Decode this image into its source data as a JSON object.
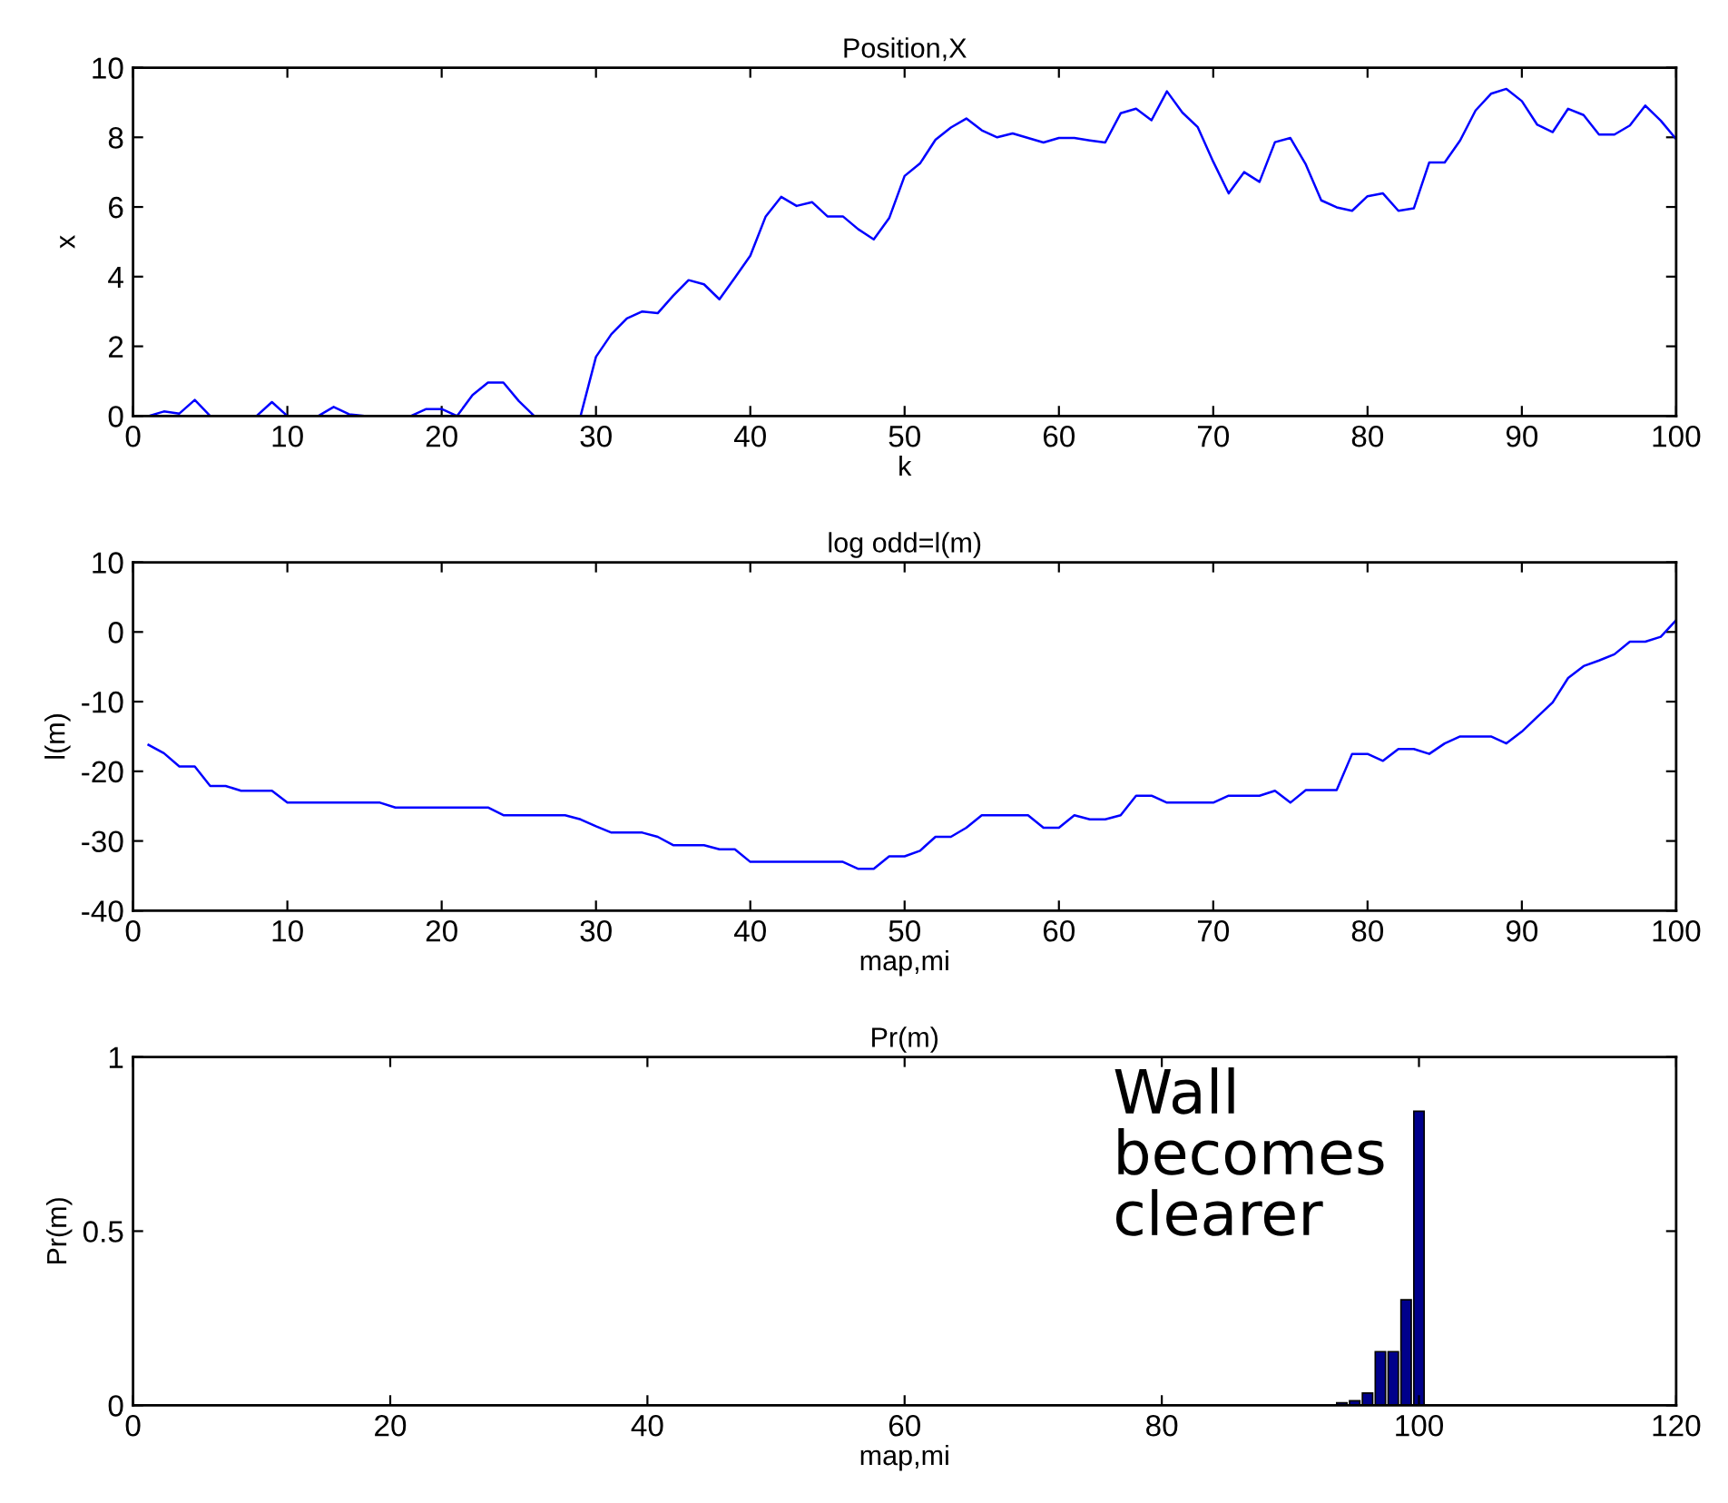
{
  "chart_data": [
    {
      "type": "line",
      "title": "Position,X",
      "xlabel": "k",
      "ylabel": "x",
      "xlim": [
        0,
        100
      ],
      "xticks": [
        0,
        10,
        20,
        30,
        40,
        50,
        60,
        70,
        80,
        90,
        100
      ],
      "ylim": [
        0,
        10
      ],
      "yticks": [
        0,
        2,
        4,
        6,
        8,
        10
      ],
      "grid": false,
      "legend": false,
      "x": [
        1,
        2,
        3,
        4,
        5,
        6,
        7,
        8,
        9,
        10,
        11,
        12,
        13,
        14,
        15,
        16,
        17,
        18,
        19,
        20,
        21,
        22,
        23,
        24,
        25,
        26,
        27,
        28,
        29,
        30,
        31,
        32,
        33,
        34,
        35,
        36,
        37,
        38,
        39,
        40,
        41,
        42,
        43,
        44,
        45,
        46,
        47,
        48,
        49,
        50,
        51,
        52,
        53,
        54,
        55,
        56,
        57,
        58,
        59,
        60,
        61,
        62,
        63,
        64,
        65,
        66,
        67,
        68,
        69,
        70,
        71,
        72,
        73,
        74,
        75,
        76,
        77,
        78,
        79,
        80,
        81,
        82,
        83,
        84,
        85,
        86,
        87,
        88,
        89,
        90,
        91,
        92,
        93,
        94,
        95,
        96,
        97,
        98,
        99,
        100
      ],
      "series": [
        {
          "color": "#0000ff",
          "values": [
            0,
            0.13,
            0.07,
            0.46,
            0,
            0,
            0,
            0,
            0.4,
            0,
            0,
            0,
            0.26,
            0.05,
            0,
            0,
            0,
            0,
            0.2,
            0.2,
            0,
            0.6,
            0.96,
            0.96,
            0.43,
            0,
            0,
            0,
            0,
            1.7,
            2.35,
            2.8,
            3.0,
            2.95,
            3.45,
            3.9,
            3.78,
            3.35,
            3.97,
            4.6,
            5.73,
            6.29,
            6.03,
            6.14,
            5.73,
            5.73,
            5.36,
            5.07,
            5.68,
            6.89,
            7.25,
            7.93,
            8.28,
            8.54,
            8.2,
            8.0,
            8.11,
            7.98,
            7.85,
            7.98,
            7.98,
            7.91,
            7.85,
            8.69,
            8.82,
            8.49,
            9.32,
            8.71,
            8.29,
            7.3,
            6.39,
            7.0,
            6.72,
            7.86,
            7.98,
            7.22,
            6.19,
            5.99,
            5.89,
            6.31,
            6.39,
            5.89,
            5.96,
            7.28,
            7.28,
            7.91,
            8.77,
            9.25,
            9.39,
            9.04,
            8.36,
            8.15,
            8.82,
            8.64,
            8.08,
            8.08,
            8.34,
            8.91,
            8.48,
            7.95
          ]
        }
      ]
    },
    {
      "type": "line",
      "title": "log odd=l(m)",
      "xlabel": "map,mi",
      "ylabel": "l(m)",
      "xlim": [
        0,
        100
      ],
      "xticks": [
        0,
        10,
        20,
        30,
        40,
        50,
        60,
        70,
        80,
        90,
        100
      ],
      "ylim": [
        -40,
        10
      ],
      "yticks": [
        -40,
        -30,
        -20,
        -10,
        0,
        10
      ],
      "grid": false,
      "legend": false,
      "x": [
        1,
        2,
        3,
        4,
        5,
        6,
        7,
        8,
        9,
        10,
        11,
        12,
        13,
        14,
        15,
        16,
        17,
        18,
        19,
        20,
        21,
        22,
        23,
        24,
        25,
        26,
        27,
        28,
        29,
        30,
        31,
        32,
        33,
        34,
        35,
        36,
        37,
        38,
        39,
        40,
        41,
        42,
        43,
        44,
        45,
        46,
        47,
        48,
        49,
        50,
        51,
        52,
        53,
        54,
        55,
        56,
        57,
        58,
        59,
        60,
        61,
        62,
        63,
        64,
        65,
        66,
        67,
        68,
        69,
        70,
        71,
        72,
        73,
        74,
        75,
        76,
        77,
        78,
        79,
        80,
        81,
        82,
        83,
        84,
        85,
        86,
        87,
        88,
        89,
        90,
        91,
        92,
        93,
        94,
        95,
        96,
        97,
        98,
        99,
        100
      ],
      "series": [
        {
          "color": "#0000ff",
          "values": [
            -16.2,
            -17.4,
            -19.3,
            -19.3,
            -22.1,
            -22.1,
            -22.8,
            -22.8,
            -22.8,
            -24.5,
            -24.5,
            -24.5,
            -24.5,
            -24.5,
            -24.5,
            -24.5,
            -25.2,
            -25.2,
            -25.2,
            -25.2,
            -25.2,
            -25.2,
            -25.2,
            -26.3,
            -26.3,
            -26.3,
            -26.3,
            -26.3,
            -26.9,
            -27.9,
            -28.8,
            -28.8,
            -28.8,
            -29.4,
            -30.6,
            -30.6,
            -30.6,
            -31.2,
            -31.2,
            -33.0,
            -33.0,
            -33.0,
            -33.0,
            -33.0,
            -33.0,
            -33.0,
            -34.0,
            -34.0,
            -32.2,
            -32.2,
            -31.4,
            -29.4,
            -29.4,
            -28.1,
            -26.3,
            -26.3,
            -26.3,
            -26.3,
            -28.1,
            -28.1,
            -26.3,
            -26.9,
            -26.9,
            -26.3,
            -23.5,
            -23.5,
            -24.5,
            -24.5,
            -24.5,
            -24.5,
            -23.5,
            -23.5,
            -23.5,
            -22.8,
            -24.5,
            -22.7,
            -22.7,
            -22.7,
            -17.5,
            -17.5,
            -18.5,
            -16.8,
            -16.8,
            -17.5,
            -16.0,
            -15.0,
            -15.0,
            -15.0,
            -16.0,
            -14.3,
            -12.2,
            -10.1,
            -6.6,
            -4.9,
            -4.1,
            -3.2,
            -1.4,
            -1.4,
            -0.7,
            1.7
          ]
        }
      ]
    },
    {
      "type": "bar",
      "title": "Pr(m)",
      "xlabel": "map,mi",
      "ylabel": "Pr(m)",
      "xlim": [
        0,
        120
      ],
      "xticks": [
        0,
        20,
        40,
        60,
        80,
        100,
        120
      ],
      "ylim": [
        0,
        1
      ],
      "yticks": [
        0,
        0.5,
        1
      ],
      "grid": false,
      "legend": false,
      "x": [
        94,
        95,
        96,
        97,
        98,
        99,
        100
      ],
      "series": [
        {
          "color": "#00008b",
          "values": [
            0.007,
            0.013,
            0.035,
            0.154,
            0.154,
            0.303,
            0.844
          ]
        }
      ],
      "annotations": [
        "Wall\nbecomes\nclearer"
      ]
    }
  ]
}
